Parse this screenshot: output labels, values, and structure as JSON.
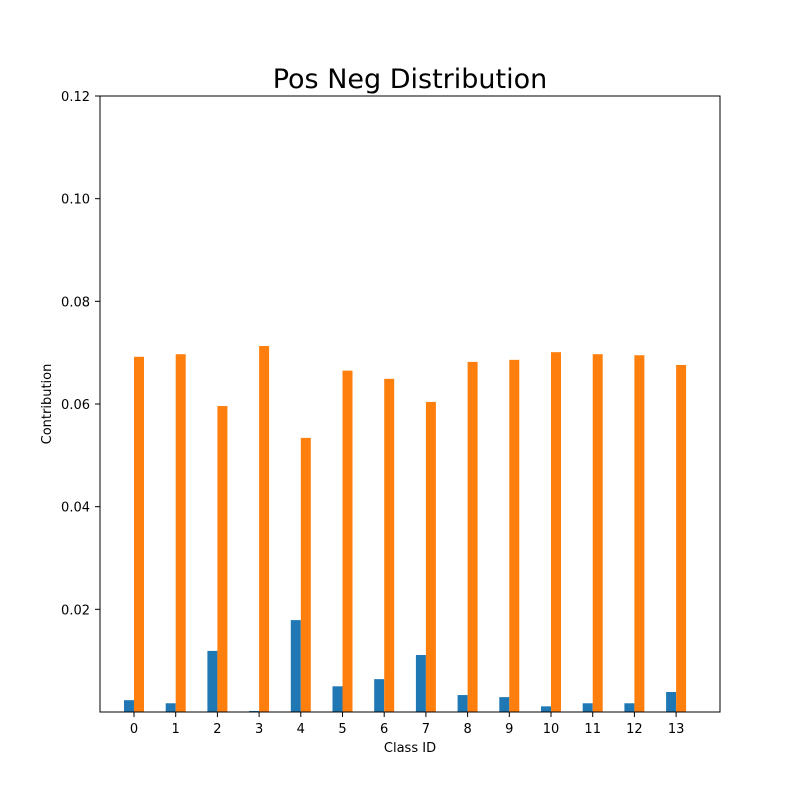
{
  "chart_data": {
    "type": "bar",
    "title": "Pos Neg Distribution",
    "xlabel": "Class ID",
    "ylabel": "Contribution",
    "categories": [
      "0",
      "1",
      "2",
      "3",
      "4",
      "5",
      "6",
      "7",
      "8",
      "9",
      "10",
      "11",
      "12",
      "13"
    ],
    "ylim": [
      0,
      0.12
    ],
    "yticks": [
      0.02,
      0.04,
      0.06,
      0.08,
      0.1,
      0.12
    ],
    "ytick_labels": [
      "0.02",
      "0.04",
      "0.06",
      "0.08",
      "0.10",
      "0.12"
    ],
    "grid": false,
    "series": [
      {
        "color": "#1f77b4",
        "values": [
          0.0023,
          0.0017,
          0.0119,
          0.0002,
          0.0179,
          0.005,
          0.0064,
          0.0111,
          0.0033,
          0.0029,
          0.0011,
          0.0017,
          0.0017,
          0.0039
        ]
      },
      {
        "color": "#ff7f0e",
        "values": [
          0.0692,
          0.0697,
          0.0596,
          0.0713,
          0.0534,
          0.0665,
          0.0649,
          0.0604,
          0.0682,
          0.0686,
          0.0701,
          0.0697,
          0.0695,
          0.0676
        ]
      }
    ]
  }
}
